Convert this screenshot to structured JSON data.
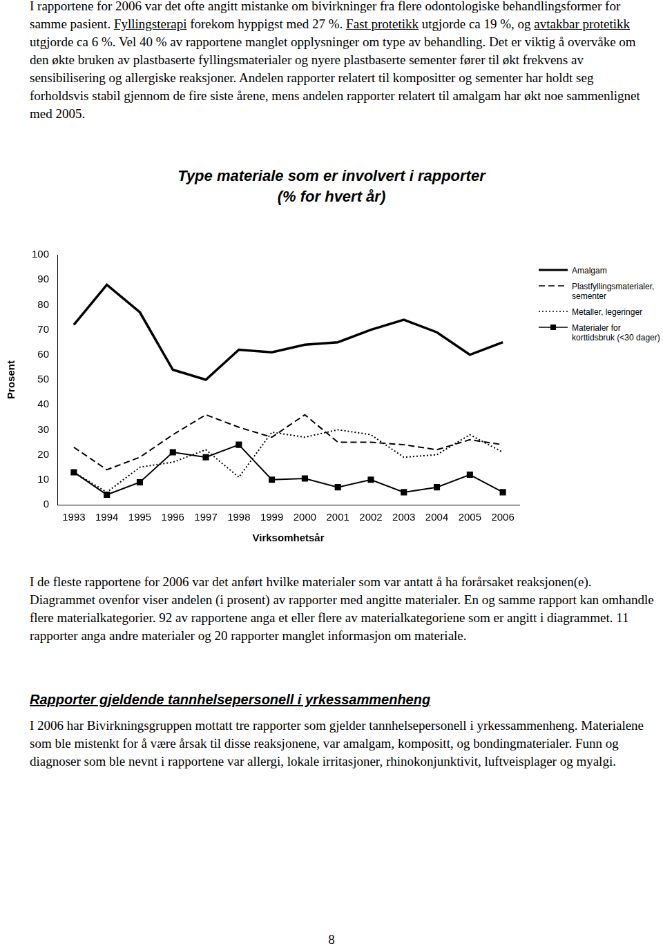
{
  "paragraph_1": [
    {
      "text": "I rapportene for 2006 var det ofte angitt mistanke om bivirkninger fra flere odontologiske behandlingsformer for samme pasient. "
    },
    {
      "text": "Fyllingsterapi",
      "underline": true
    },
    {
      "text": " forekom hyppigst med 27 %. "
    },
    {
      "text": "Fast protetikk",
      "underline": true
    },
    {
      "text": " utgjorde ca 19 %, og "
    },
    {
      "text": "avtakbar protetikk",
      "underline": true
    },
    {
      "text": " utgjorde ca 6 %. Vel 40 % av rapportene manglet opplysninger om type av behandling. Det er viktig å overvåke om den økte bruken av plastbaserte fyllingsmaterialer og nyere plastbaserte sementer fører til økt frekvens av sensibilisering og allergiske reaksjoner. Andelen rapporter relatert til kompositter og sementer har holdt seg forholdsvis stabil gjennom de fire siste årene, mens andelen rapporter relatert til amalgam har økt noe sammenlignet med 2005."
    }
  ],
  "chart_data": {
    "type": "line",
    "title": [
      "Type materiale som er involvert i rapporter",
      "(% for hvert år)"
    ],
    "x_label": "Virksomhetsår",
    "y_label": "Prosent",
    "categories": [
      "1993",
      "1994",
      "1995",
      "1996",
      "1997",
      "1998",
      "1999",
      "2000",
      "2001",
      "2002",
      "2003",
      "2004",
      "2005",
      "2006"
    ],
    "series": [
      {
        "name": "Amalgam",
        "color": "#000000",
        "line_style": "solid",
        "marker": "none",
        "values": [
          72,
          88,
          77,
          54,
          50,
          62,
          61,
          64,
          65,
          70,
          74,
          69,
          60,
          65
        ]
      },
      {
        "name": "Plastfyllingsmaterialer, sementer",
        "color": "#000000",
        "line_style": "dashed",
        "marker": "none",
        "values": [
          23,
          14,
          19,
          28,
          36,
          31,
          27,
          36,
          25,
          25,
          24,
          22,
          26,
          24
        ]
      },
      {
        "name": "Metaller, legeringer",
        "color": "#000000",
        "line_style": "dotted",
        "marker": "none",
        "values": [
          13,
          5,
          15,
          17,
          22,
          11,
          29,
          27,
          30,
          28,
          19,
          20,
          28,
          21
        ]
      },
      {
        "name": "Materialer for korttidsbruk (<30 dager)",
        "color": "#000000",
        "line_style": "solid",
        "marker": "square",
        "values": [
          13,
          4,
          9,
          21,
          19,
          24,
          10,
          10.5,
          7,
          10,
          5,
          7,
          12,
          5
        ]
      }
    ],
    "ylim": [
      0,
      100
    ],
    "yticks": [
      0,
      10,
      20,
      30,
      40,
      50,
      60,
      70,
      80,
      90,
      100
    ],
    "grid": false,
    "legend": "right"
  },
  "paragraph_2": [
    {
      "text": "I de fleste rapportene for 2006 var det anført hvilke materialer som var antatt å ha forårsaket reaksjonen(e). Diagrammet ovenfor viser andelen (i prosent) av rapporter med angitte materialer. En og samme rapport kan omhandle flere materialkategorier. 92 av rapportene anga et eller flere av materialkategoriene som er angitt i diagrammet. 11 rapporter anga andre materialer og 20 rapporter manglet informasjon om materiale."
    }
  ],
  "heading": "Rapporter gjeldende tannhelsepersonell i yrkessammenheng",
  "paragraph_3": [
    {
      "text": "I 2006 har Bivirkningsgruppen mottatt tre rapporter som gjelder tannhelsepersonell i yrkessammenheng.  Materialene som ble mistenkt for å være årsak til disse reaksjonene, var amalgam, kompositt, og bondingmaterialer.  Funn og diagnoser som ble nevnt i rapportene var allergi, lokale irritasjoner, rhinokonjunktivit, luftveisplager og myalgi."
    }
  ],
  "page_number": "8"
}
